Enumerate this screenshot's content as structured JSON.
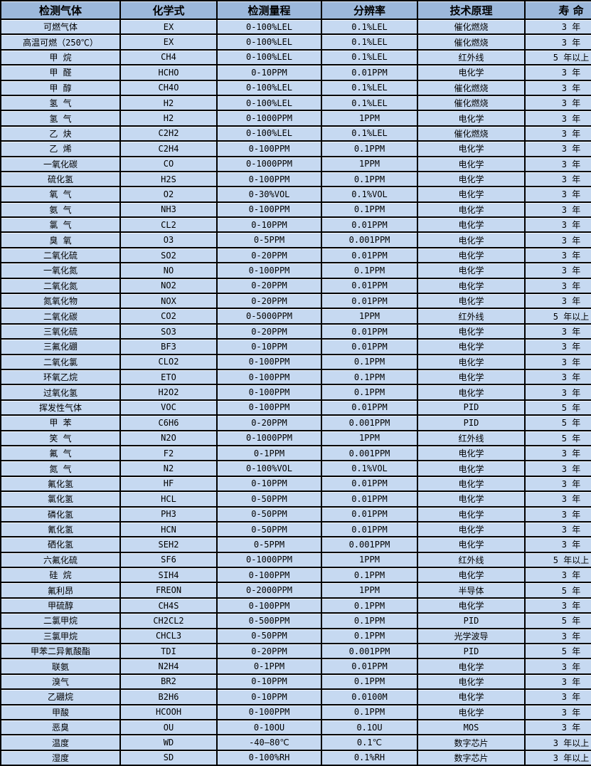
{
  "table": {
    "title": "gas-detector-specifications",
    "columns": [
      "检测气体",
      "化学式",
      "检测量程",
      "分辨率",
      "技术原理",
      "寿 命"
    ],
    "rows": [
      [
        "可燃气体",
        "EX",
        "0-100%LEL",
        "0.1%LEL",
        "催化燃烧",
        "3 年"
      ],
      [
        "高温可燃（250℃）",
        "EX",
        "0-100%LEL",
        "0.1%LEL",
        "催化燃烧",
        "3 年"
      ],
      [
        "甲 烷",
        "CH4",
        "0-100%LEL",
        "0.1%LEL",
        "红外线",
        "5 年以上"
      ],
      [
        "甲 醛",
        "HCHO",
        "0-10PPM",
        "0.01PPM",
        "电化学",
        "3 年"
      ],
      [
        "甲 醇",
        "CH4O",
        "0-100%LEL",
        "0.1%LEL",
        "催化燃烧",
        "3 年"
      ],
      [
        "氢 气",
        "H2",
        "0-100%LEL",
        "0.1%LEL",
        "催化燃烧",
        "3 年"
      ],
      [
        "氢 气",
        "H2",
        "0-1000PPM",
        "1PPM",
        "电化学",
        "3 年"
      ],
      [
        "乙 炔",
        "C2H2",
        "0-100%LEL",
        "0.1%LEL",
        "催化燃烧",
        "3 年"
      ],
      [
        "乙 烯",
        "C2H4",
        "0-100PPM",
        "0.1PPM",
        "电化学",
        "3 年"
      ],
      [
        "一氧化碳",
        "CO",
        "0-1000PPM",
        "1PPM",
        "电化学",
        "3 年"
      ],
      [
        "硫化氢",
        "H2S",
        "0-100PPM",
        "0.1PPM",
        "电化学",
        "3 年"
      ],
      [
        "氧 气",
        "O2",
        "0-30%VOL",
        "0.1%VOL",
        "电化学",
        "3 年"
      ],
      [
        "氨 气",
        "NH3",
        "0-100PPM",
        "0.1PPM",
        "电化学",
        "3 年"
      ],
      [
        "氯 气",
        "CL2",
        "0-10PPM",
        "0.01PPM",
        "电化学",
        "3 年"
      ],
      [
        "臭 氧",
        "O3",
        "0-5PPM",
        "0.001PPM",
        "电化学",
        "3 年"
      ],
      [
        "二氧化硫",
        "SO2",
        "0-20PPM",
        "0.01PPM",
        "电化学",
        "3 年"
      ],
      [
        "一氧化氮",
        "NO",
        "0-100PPM",
        "0.1PPM",
        "电化学",
        "3 年"
      ],
      [
        "二氧化氮",
        "NO2",
        "0-20PPM",
        "0.01PPM",
        "电化学",
        "3 年"
      ],
      [
        "氮氧化物",
        "NOX",
        "0-20PPM",
        "0.01PPM",
        "电化学",
        "3 年"
      ],
      [
        "二氧化碳",
        "CO2",
        "0-5000PPM",
        "1PPM",
        "红外线",
        "5 年以上"
      ],
      [
        "三氧化硫",
        "SO3",
        "0-20PPM",
        "0.01PPM",
        "电化学",
        "3 年"
      ],
      [
        "三氟化硼",
        "BF3",
        "0-10PPM",
        "0.01PPM",
        "电化学",
        "3 年"
      ],
      [
        "二氧化氯",
        "CLO2",
        "0-100PPM",
        "0.1PPM",
        "电化学",
        "3 年"
      ],
      [
        "环氧乙烷",
        "ETO",
        "0-100PPM",
        "0.1PPM",
        "电化学",
        "3 年"
      ],
      [
        "过氧化氢",
        "H2O2",
        "0-100PPM",
        "0.1PPM",
        "电化学",
        "3 年"
      ],
      [
        "挥发性气体",
        "VOC",
        "0-100PPM",
        "0.01PPM",
        "PID",
        "5 年"
      ],
      [
        "甲 苯",
        "C6H6",
        "0-20PPM",
        "0.001PPM",
        "PID",
        "5 年"
      ],
      [
        "笑 气",
        "N2O",
        "0-1000PPM",
        "1PPM",
        "红外线",
        "5 年"
      ],
      [
        "氟 气",
        "F2",
        "0-1PPM",
        "0.001PPM",
        "电化学",
        "3 年"
      ],
      [
        "氮 气",
        "N2",
        "0-100%VOL",
        "0.1%VOL",
        "电化学",
        "3 年"
      ],
      [
        "氟化氢",
        "HF",
        "0-10PPM",
        "0.01PPM",
        "电化学",
        "3 年"
      ],
      [
        "氯化氢",
        "HCL",
        "0-50PPM",
        "0.01PPM",
        "电化学",
        "3 年"
      ],
      [
        "磷化氢",
        "PH3",
        "0-50PPM",
        "0.01PPM",
        "电化学",
        "3 年"
      ],
      [
        "氰化氢",
        "HCN",
        "0-50PPM",
        "0.01PPM",
        "电化学",
        "3 年"
      ],
      [
        "硒化氢",
        "SEH2",
        "0-5PPM",
        "0.001PPM",
        "电化学",
        "3 年"
      ],
      [
        "六氟化硫",
        "SF6",
        "0-1000PPM",
        "1PPM",
        "红外线",
        "5 年以上"
      ],
      [
        "硅 烷",
        "SIH4",
        "0-100PPM",
        "0.1PPM",
        "电化学",
        "3 年"
      ],
      [
        "氟利昂",
        "FREON",
        "0-2000PPM",
        "1PPM",
        "半导体",
        "5 年"
      ],
      [
        "甲硫醇",
        "CH4S",
        "0-100PPM",
        "0.1PPM",
        "电化学",
        "3 年"
      ],
      [
        "二氯甲烷",
        "CH2CL2",
        "0-500PPM",
        "0.1PPM",
        "PID",
        "5 年"
      ],
      [
        "三氯甲烷",
        "CHCL3",
        "0-50PPM",
        "0.1PPM",
        "光学波导",
        "3 年"
      ],
      [
        "甲苯二异氰酸酯",
        "TDI",
        "0-20PPM",
        "0.001PPM",
        "PID",
        "5 年"
      ],
      [
        "联氨",
        "N2H4",
        "0-1PPM",
        "0.01PPM",
        "电化学",
        "3 年"
      ],
      [
        "溴气",
        "BR2",
        "0-10PPM",
        "0.1PPM",
        "电化学",
        "3 年"
      ],
      [
        "乙硼烷",
        "B2H6",
        "0-10PPM",
        "0.0100M",
        "电化学",
        "3 年"
      ],
      [
        "甲酸",
        "HCOOH",
        "0-100PPM",
        "0.1PPM",
        "电化学",
        "3 年"
      ],
      [
        "恶臭",
        "OU",
        "0-10OU",
        "0.1OU",
        "MOS",
        "3 年"
      ],
      [
        "温度",
        "WD",
        "-40—80℃",
        "0.1℃",
        "数字芯片",
        "3 年以上"
      ],
      [
        "湿度",
        "SD",
        "0-100%RH",
        "0.1%RH",
        "数字芯片",
        "3 年以上"
      ]
    ]
  },
  "colors": {
    "header_background": "#9cb8db",
    "row_background": "#c6d9f1",
    "grid_border": "#000000",
    "text": "#000000"
  }
}
